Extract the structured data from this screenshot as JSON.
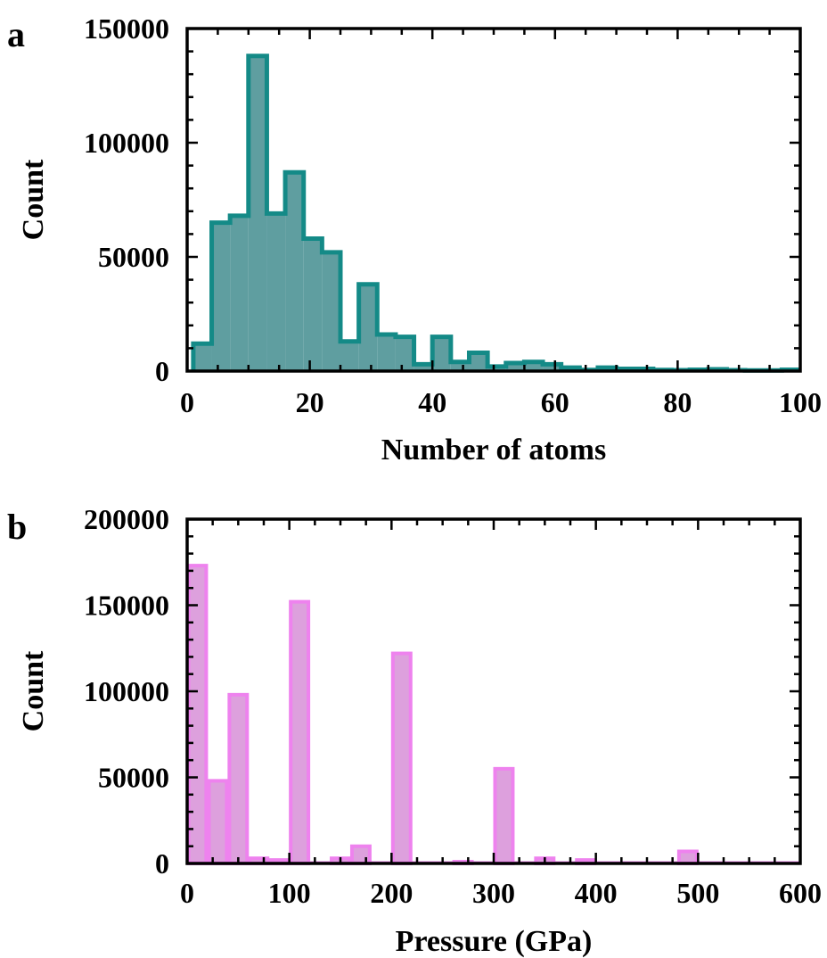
{
  "chart_data": [
    {
      "type": "histogram",
      "panel_label": "a",
      "xlabel": "Number of atoms",
      "ylabel": "Count",
      "xlim": [
        0,
        100
      ],
      "ylim": [
        0,
        150000
      ],
      "x_ticks": [
        0,
        20,
        40,
        60,
        80,
        100
      ],
      "y_ticks": [
        0,
        50000,
        100000,
        150000
      ],
      "x_tick_labels": [
        "0",
        "20",
        "40",
        "60",
        "80",
        "100"
      ],
      "y_tick_labels": [
        "0",
        "50000",
        "100000",
        "150000"
      ],
      "bin_width": 3.0,
      "bin_start": 1.0,
      "values": [
        12000,
        65000,
        68000,
        138000,
        69000,
        87000,
        58000,
        52000,
        13000,
        38000,
        16000,
        15000,
        3000,
        15000,
        4000,
        8000,
        2000,
        3500,
        4000,
        3000,
        1500,
        500,
        1500,
        1000,
        1000,
        500,
        400,
        600,
        800,
        400,
        300,
        300,
        600,
        300
      ],
      "fill_color": "#5f9ea0",
      "edge_color": "#148a87",
      "grid": false
    },
    {
      "type": "histogram",
      "panel_label": "b",
      "xlabel": "Pressure (GPa)",
      "ylabel": "Count",
      "xlim": [
        0,
        600
      ],
      "ylim": [
        0,
        200000
      ],
      "x_ticks": [
        0,
        100,
        200,
        300,
        400,
        500,
        600
      ],
      "y_ticks": [
        0,
        50000,
        100000,
        150000,
        200000
      ],
      "x_tick_labels": [
        "0",
        "100",
        "200",
        "300",
        "400",
        "500",
        "600"
      ],
      "y_tick_labels": [
        "0",
        "50000",
        "100000",
        "150000",
        "200000"
      ],
      "bin_width": 20,
      "bin_start": 0,
      "values": [
        173000,
        48000,
        98000,
        3000,
        2000,
        152000,
        0,
        3000,
        10000,
        0,
        122000,
        0,
        0,
        1000,
        0,
        55000,
        0,
        3000,
        0,
        2000,
        0,
        0,
        0,
        0,
        7000,
        0,
        0,
        0,
        0,
        0
      ],
      "fill_color": "#dda0dd",
      "edge_color": "#ee82ee",
      "grid": false
    }
  ]
}
